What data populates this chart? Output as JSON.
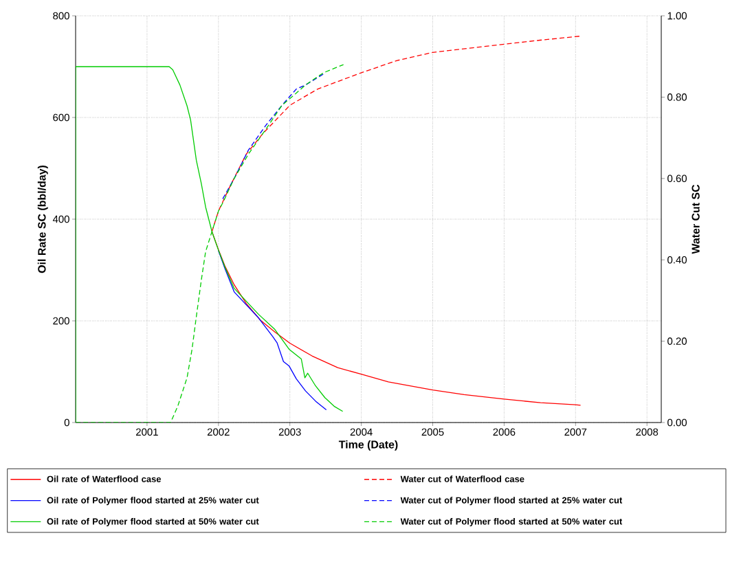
{
  "chart_data": {
    "type": "line",
    "xlabel": "Time (Date)",
    "ylabel": "Oil Rate SC (bbl/day)",
    "y2label": "Water Cut SC",
    "xlim": [
      2000,
      2008.2
    ],
    "xticks": [
      2001,
      2002,
      2003,
      2004,
      2005,
      2006,
      2007,
      2008
    ],
    "ylim": [
      0,
      800
    ],
    "yticks": [
      0,
      200,
      400,
      600,
      800
    ],
    "y2lim": [
      0,
      1
    ],
    "y2ticks": [
      {
        "value": 0,
        "label": "0.00"
      },
      {
        "value": 0.2,
        "label": "0.20"
      },
      {
        "value": 0.4,
        "label": "0.40"
      },
      {
        "value": 0.6,
        "label": "0.60"
      },
      {
        "value": 0.8,
        "label": "0.80"
      },
      {
        "value": 1,
        "label": "1.00"
      }
    ],
    "grid": true,
    "legend": "bottom",
    "series": [
      {
        "name": "Oil rate of Waterflood case",
        "color": "#ff0000",
        "line_style": "solid",
        "x": [
          2001.91,
          2002.0,
          2002.09,
          2002.22,
          2002.39,
          2002.59,
          2002.79,
          2003.0,
          2003.31,
          2003.67,
          2004.0,
          2004.38,
          2005.0,
          2005.44,
          2006.0,
          2006.51,
          2007.0,
          2007.07
        ],
        "values": [
          375,
          340,
          308,
          271,
          234,
          201,
          178,
          156,
          131,
          108,
          95,
          80,
          64,
          55,
          46,
          39,
          35,
          34
        ]
      },
      {
        "name": "Water cut of Waterflood case",
        "color": "#ff0000",
        "line_style": "dashed",
        "axis": "y2",
        "x": [
          2001.91,
          2002.0,
          2002.16,
          2002.39,
          2002.62,
          2003.0,
          2003.39,
          2004.0,
          2004.5,
          2005.0,
          2005.5,
          2006.0,
          2006.5,
          2007.07
        ],
        "values": [
          0.47,
          0.52,
          0.58,
          0.66,
          0.71,
          0.78,
          0.82,
          0.86,
          0.89,
          0.91,
          0.92,
          0.93,
          0.94,
          0.95
        ]
      },
      {
        "name": "Oil rate of Polymer flood started at 25% water cut",
        "color": "#0000ff",
        "line_style": "solid",
        "x": [
          2002.0,
          2002.09,
          2002.22,
          2002.56,
          2002.76,
          2002.82,
          2002.91,
          2002.99,
          2003.09,
          2003.22,
          2003.36,
          2003.51
        ],
        "values": [
          338,
          303,
          257,
          206,
          169,
          157,
          120,
          111,
          86,
          62,
          42,
          25
        ]
      },
      {
        "name": "Water cut of Polymer flood started at 25% water cut",
        "color": "#0000ff",
        "line_style": "dashed",
        "axis": "y2",
        "x": [
          2002.06,
          2002.22,
          2002.42,
          2002.66,
          2002.89,
          2003.09,
          2003.22,
          2003.5
        ],
        "values": [
          0.55,
          0.6,
          0.67,
          0.73,
          0.78,
          0.82,
          0.83,
          0.86
        ]
      },
      {
        "name": "Oil rate of Polymer flood started at 50% water cut",
        "color": "#00cc00",
        "line_style": "solid",
        "x": [
          2000,
          2000,
          2001.31,
          2001.36,
          2001.46,
          2001.56,
          2001.61,
          2001.69,
          2001.76,
          2001.82,
          2001.91,
          2002.0,
          2002.09,
          2002.22,
          2002.56,
          2002.79,
          2002.99,
          2003.16,
          2003.21,
          2003.25,
          2003.36,
          2003.49,
          2003.62,
          2003.74
        ],
        "values": [
          0,
          700,
          700,
          694,
          664,
          623,
          595,
          516,
          470,
          424,
          375,
          339,
          306,
          264,
          213,
          183,
          144,
          125,
          88,
          97,
          72,
          49,
          32,
          22
        ]
      },
      {
        "name": "Water cut of Polymer flood started at 50% water cut",
        "color": "#00cc00",
        "line_style": "dashed",
        "axis": "y2",
        "x": [
          2000,
          2001.33,
          2001.43,
          2001.56,
          2001.63,
          2001.69,
          2001.76,
          2001.82,
          2001.91,
          2002.0,
          2002.06,
          2002.22,
          2002.42,
          2002.66,
          2002.89,
          2003.09,
          2003.22,
          2003.47,
          2003.75
        ],
        "values": [
          0,
          0,
          0.04,
          0.11,
          0.18,
          0.26,
          0.35,
          0.42,
          0.47,
          0.52,
          0.54,
          0.6,
          0.66,
          0.72,
          0.78,
          0.81,
          0.83,
          0.86,
          0.88
        ]
      }
    ]
  }
}
